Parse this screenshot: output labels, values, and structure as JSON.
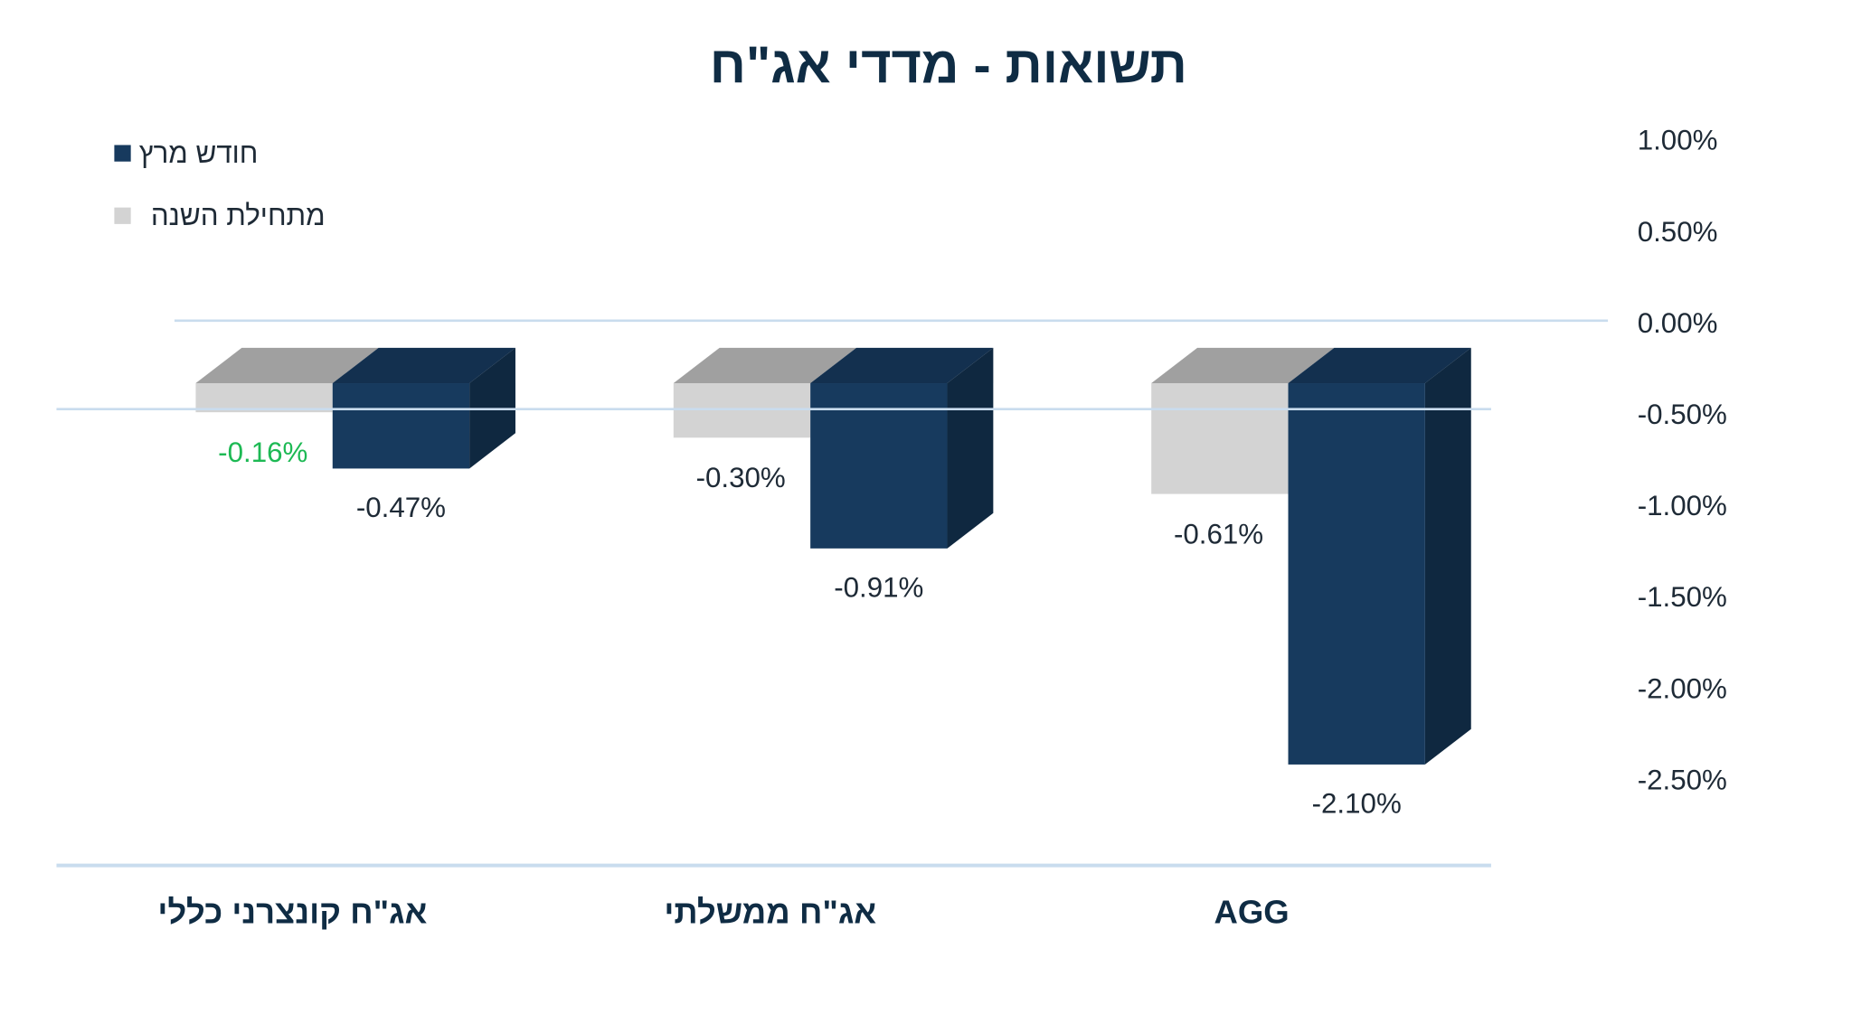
{
  "chart_data": {
    "type": "bar",
    "title": "תשואות - מדדי אג\"ח",
    "categories": [
      "אג\"ח קונצרני כללי",
      "אג\"ח ממשלתי",
      "AGG"
    ],
    "series": [
      {
        "name": "מתחילת השנה",
        "color": "#d3d3d3",
        "top_color": "#a0a0a0",
        "values": [
          -0.16,
          -0.3,
          -0.61
        ],
        "labels": [
          "-0.16%",
          "-0.30%",
          "-0.61%"
        ],
        "label_colors": [
          "#1db954",
          "#1e2a36",
          "#1e2a36"
        ]
      },
      {
        "name": "חודש מרץ",
        "color": "#173a5e",
        "top_color": "#13304f",
        "side_color": "#0f2840",
        "values": [
          -0.47,
          -0.91,
          -2.1
        ],
        "labels": [
          "-0.47%",
          "-0.91%",
          "-2.10%"
        ]
      }
    ],
    "yticks": [
      "1.00%",
      "0.50%",
      "0.00%",
      "-0.50%",
      "-1.00%",
      "-1.50%",
      "-2.00%",
      "-2.50%"
    ],
    "ylim": [
      -2.5,
      1.0
    ],
    "legend": {
      "position": "top-left",
      "entries": [
        "חודש מרץ",
        "מתחילת השנה"
      ]
    },
    "xlabel": "",
    "ylabel": ""
  }
}
